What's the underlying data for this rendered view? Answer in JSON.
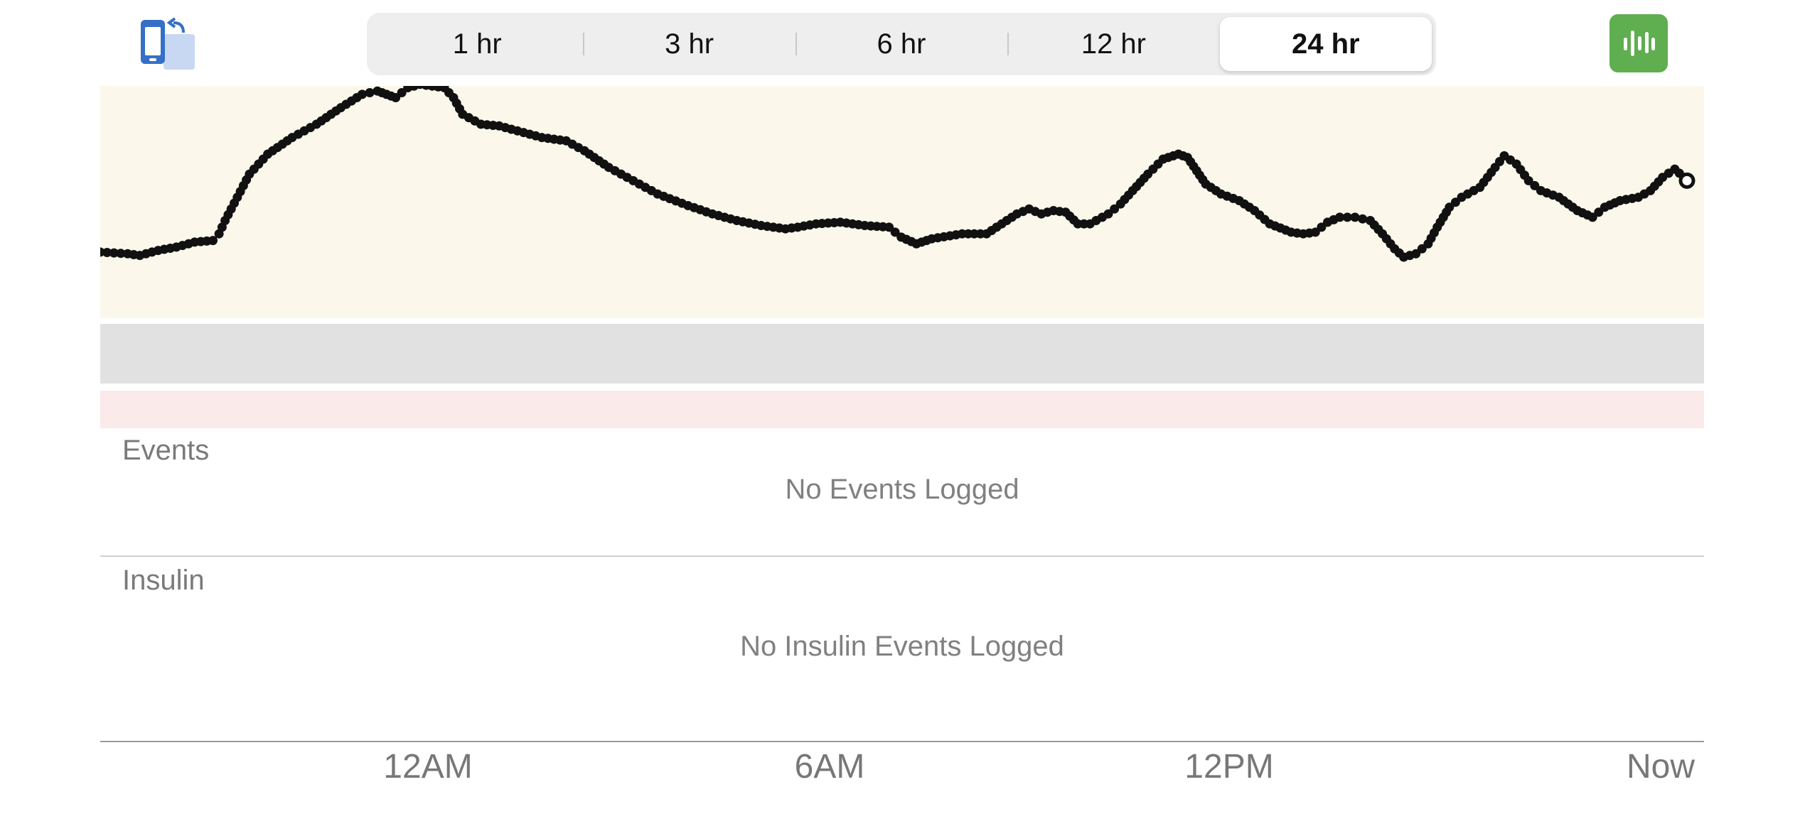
{
  "toolbar": {
    "left_icon": "rotate-device-icon",
    "ranges": [
      {
        "label": "1 hr",
        "selected": false
      },
      {
        "label": "3 hr",
        "selected": false
      },
      {
        "label": "6 hr",
        "selected": false
      },
      {
        "label": "12 hr",
        "selected": false
      },
      {
        "label": "24 hr",
        "selected": true
      }
    ],
    "right_icon": "readings-bars-icon",
    "right_icon_color": "#5fae4f"
  },
  "events": {
    "label": "Events",
    "empty_text": "No Events Logged"
  },
  "insulin": {
    "label": "Insulin",
    "empty_text": "No Insulin Events Logged"
  },
  "colors": {
    "high_zone": "#fbf8eb",
    "target_zone": "#e1e1e1",
    "low_zone": "#fbeaea",
    "dots": "#111111"
  },
  "chart_data": {
    "type": "scatter",
    "title": "",
    "xlabel": "",
    "ylabel": "",
    "x_ticks": [
      "12AM",
      "6AM",
      "12PM",
      "Now"
    ],
    "x_tick_hours": [
      24,
      30,
      36,
      43.9
    ],
    "xlim": [
      19.05,
      43.9
    ],
    "ylim": [
      0,
      100
    ],
    "zones": {
      "high_min": 52,
      "target": [
        36,
        52
      ],
      "low": [
        0,
        10
      ]
    },
    "series": [
      {
        "points": [
          [
            19.05,
            44.5
          ],
          [
            19.5,
            44
          ],
          [
            19.7,
            43.5
          ],
          [
            20.0,
            45
          ],
          [
            20.3,
            46
          ],
          [
            20.6,
            47.5
          ],
          [
            20.9,
            48
          ],
          [
            21.0,
            50
          ],
          [
            21.1,
            54
          ],
          [
            21.3,
            61
          ],
          [
            21.5,
            68
          ],
          [
            21.8,
            74
          ],
          [
            22.2,
            79
          ],
          [
            22.6,
            83
          ],
          [
            23.0,
            88
          ],
          [
            23.35,
            92
          ],
          [
            23.6,
            93
          ],
          [
            23.75,
            92
          ],
          [
            23.9,
            91
          ],
          [
            24.1,
            94
          ],
          [
            24.3,
            95
          ],
          [
            24.5,
            94.5
          ],
          [
            24.7,
            94
          ],
          [
            24.85,
            91
          ],
          [
            25.0,
            86
          ],
          [
            25.3,
            83
          ],
          [
            25.6,
            82.5
          ],
          [
            25.9,
            81
          ],
          [
            26.3,
            79
          ],
          [
            26.7,
            78
          ],
          [
            27.0,
            75
          ],
          [
            27.4,
            70
          ],
          [
            27.8,
            66
          ],
          [
            28.2,
            62
          ],
          [
            28.7,
            58.5
          ],
          [
            29.1,
            56
          ],
          [
            29.5,
            54
          ],
          [
            29.9,
            52.5
          ],
          [
            30.3,
            51.5
          ],
          [
            30.5,
            52
          ],
          [
            30.8,
            53
          ],
          [
            31.2,
            53.5
          ],
          [
            31.6,
            52.5
          ],
          [
            32.0,
            52
          ],
          [
            32.2,
            49
          ],
          [
            32.45,
            47
          ],
          [
            32.7,
            48.5
          ],
          [
            33.2,
            50
          ],
          [
            33.6,
            50
          ],
          [
            33.85,
            53
          ],
          [
            34.1,
            56
          ],
          [
            34.3,
            57.5
          ],
          [
            34.5,
            56
          ],
          [
            34.7,
            57
          ],
          [
            34.9,
            56.5
          ],
          [
            35.1,
            53
          ],
          [
            35.3,
            53
          ],
          [
            35.6,
            56
          ],
          [
            35.8,
            59
          ],
          [
            36.0,
            63
          ],
          [
            36.25,
            68
          ],
          [
            36.5,
            72.5
          ],
          [
            36.75,
            74
          ],
          [
            36.9,
            73
          ],
          [
            37.05,
            69
          ],
          [
            37.2,
            65
          ],
          [
            37.45,
            62
          ],
          [
            37.75,
            60
          ],
          [
            38.0,
            57
          ],
          [
            38.25,
            53
          ],
          [
            38.6,
            50.5
          ],
          [
            38.8,
            50
          ],
          [
            39.0,
            50.5
          ],
          [
            39.2,
            53.5
          ],
          [
            39.4,
            55
          ],
          [
            39.65,
            55
          ],
          [
            39.9,
            54
          ],
          [
            40.1,
            50
          ],
          [
            40.3,
            45.5
          ],
          [
            40.45,
            43
          ],
          [
            40.65,
            44
          ],
          [
            40.85,
            47
          ],
          [
            41.0,
            52
          ],
          [
            41.2,
            58
          ],
          [
            41.4,
            61
          ],
          [
            41.7,
            64
          ],
          [
            41.95,
            70
          ],
          [
            42.1,
            73.5
          ],
          [
            42.3,
            71
          ],
          [
            42.5,
            66
          ],
          [
            42.7,
            63
          ],
          [
            43.0,
            61
          ],
          [
            43.3,
            57
          ],
          [
            43.55,
            55
          ],
          [
            43.75,
            58
          ],
          [
            44.0,
            60
          ],
          [
            44.3,
            61
          ],
          [
            44.5,
            63
          ],
          [
            44.7,
            67
          ],
          [
            44.9,
            69.5
          ],
          [
            45.05,
            67
          ],
          [
            45.1,
            66
          ]
        ]
      }
    ]
  }
}
